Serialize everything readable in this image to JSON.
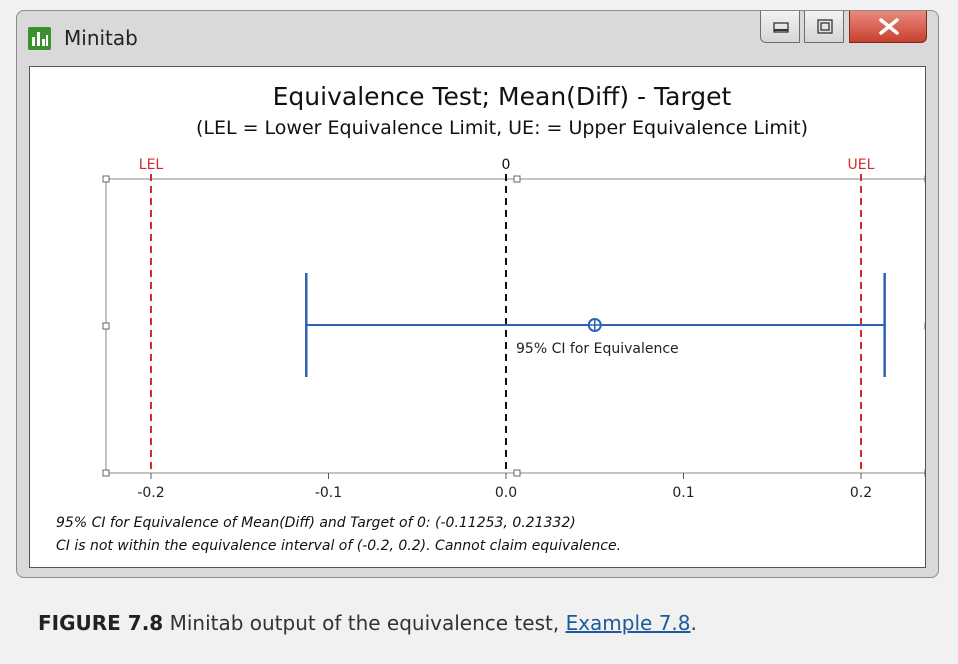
{
  "window": {
    "title": "Minitab",
    "controls": [
      "minimize-icon",
      "maximize-icon",
      "close-icon"
    ]
  },
  "chart_data": {
    "type": "interval",
    "title": "Equivalence Test; Mean(Diff) - Target",
    "subtitle": "(LEL = Lower Equivalence Limit, UE: = Upper Equivalence Limit)",
    "xlim": [
      -0.25,
      0.25
    ],
    "x_ticks": [
      -0.2,
      -0.1,
      0.0,
      0.1,
      0.2
    ],
    "x_tick_labels": [
      "-0.2",
      "-0.1",
      "0.0",
      "0.1",
      "0.2"
    ],
    "reference_lines": [
      {
        "label": "LEL",
        "x": -0.2,
        "color": "#d62a2a",
        "style": "dashed"
      },
      {
        "label": "0",
        "x": 0.0,
        "color": "#111111",
        "style": "dashed"
      },
      {
        "label": "UEL",
        "x": 0.2,
        "color": "#d62a2a",
        "style": "dashed"
      }
    ],
    "interval": {
      "label": "95% CI for Equivalence",
      "lower": -0.11253,
      "upper": 0.21332,
      "estimate": 0.05,
      "color": "#2e62b4"
    }
  },
  "footnotes": {
    "line1": "95% CI for Equivalence of Mean(Diff) and Target of 0: (-0.11253, 0.21332)",
    "line2": "CI is not within the equivalence interval of (-0.2, 0.2). Cannot claim equivalence."
  },
  "caption": {
    "label": "FIGURE 7.8",
    "text": " Minitab output of the equivalence test, ",
    "link": "Example 7.8",
    "suffix": "."
  },
  "colors": {
    "logo_green": "#3b8f2e",
    "interval": "#2e62b4",
    "limits": "#d62a2a"
  }
}
